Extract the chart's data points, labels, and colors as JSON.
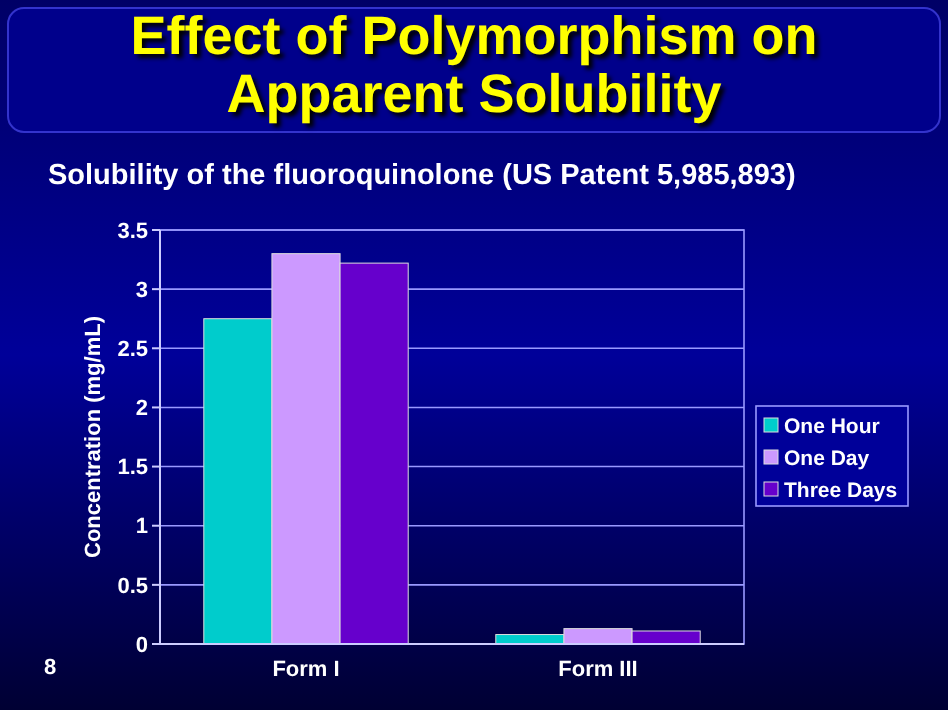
{
  "chart_data": {
    "type": "bar",
    "title": "Effect of Polymorphism on Apparent Solubility",
    "subtitle": "Solubility of the fluoroquinolone (US Patent 5,985,893)",
    "ylabel": "Concentration (mg/mL)",
    "categories": [
      "Form I",
      "Form III"
    ],
    "series": [
      {
        "name": "One Hour",
        "color": "#00cccc",
        "values": [
          2.75,
          0.08
        ]
      },
      {
        "name": "One Day",
        "color": "#cc99ff",
        "values": [
          3.3,
          0.13
        ]
      },
      {
        "name": "Three Days",
        "color": "#6600cc",
        "values": [
          3.22,
          0.11
        ]
      }
    ],
    "ylim": [
      0,
      3.5
    ],
    "yticks": [
      0,
      0.5,
      1,
      1.5,
      2,
      2.5,
      3,
      3.5
    ],
    "grid": "y",
    "legend": "right",
    "annotations": [
      "8"
    ]
  }
}
